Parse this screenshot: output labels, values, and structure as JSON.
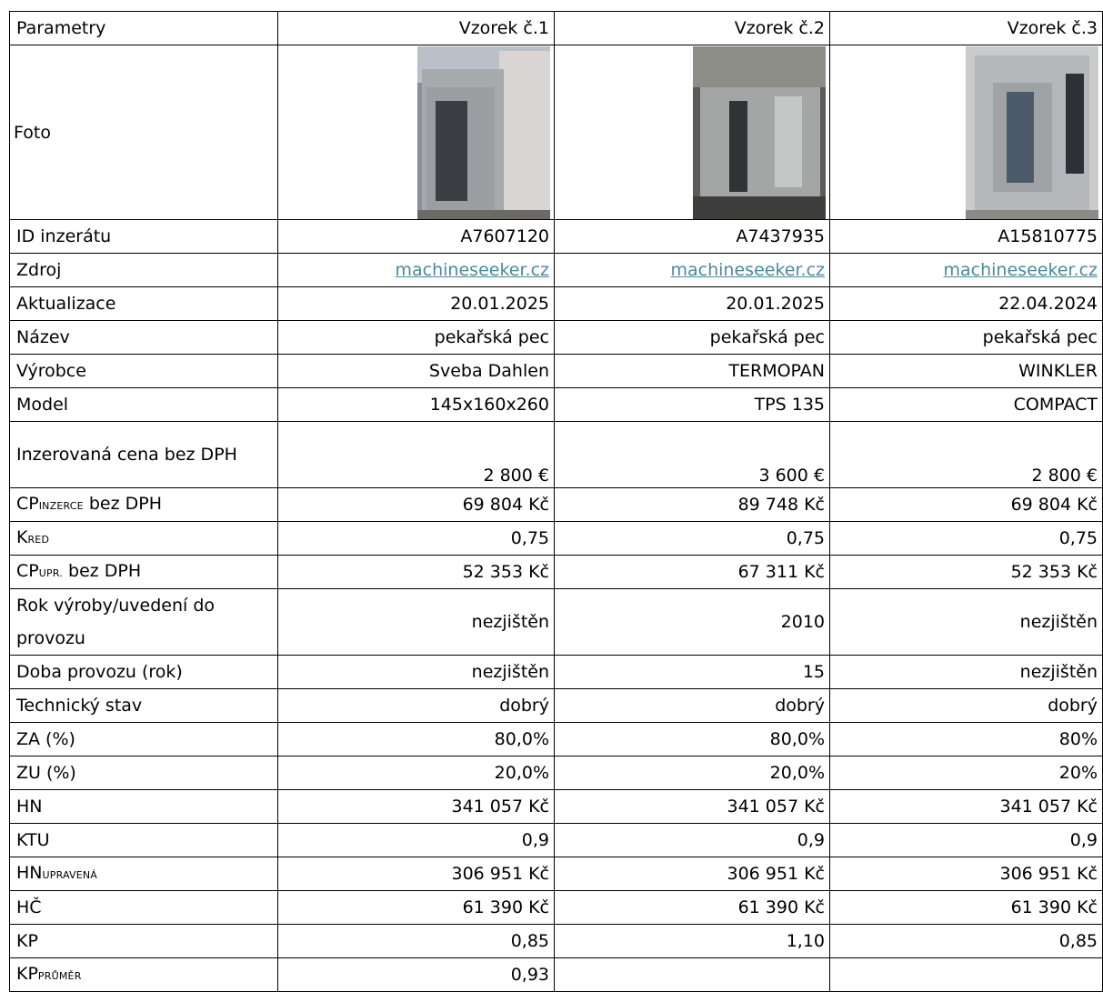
{
  "table": {
    "header": [
      "Parametry",
      "Vzorek č.1",
      "Vzorek č.2",
      "Vzorek č.3"
    ],
    "photo_label": "Foto",
    "rows": [
      {
        "label": "ID inzerátu",
        "values": [
          "A7607120",
          "A7437935",
          "A15810775"
        ]
      },
      {
        "label": "Zdroj",
        "values": [
          "machineseeker.cz",
          "machineseeker.cz",
          "machineseeker.cz"
        ],
        "link": true
      },
      {
        "label": "Aktualizace",
        "values": [
          "20.01.2025",
          "20.01.2025",
          "22.04.2024"
        ]
      },
      {
        "label": "Název",
        "values": [
          "pekařská pec",
          "pekařská pec",
          "pekařská pec"
        ]
      },
      {
        "label": "Výrobce",
        "values": [
          "Sveba Dahlen",
          "TERMOPAN",
          "WINKLER"
        ]
      },
      {
        "label": "Model",
        "values": [
          "145x160x260",
          "TPS 135",
          "COMPACT"
        ]
      },
      {
        "label": "Inzerovaná cena bez DPH",
        "values": [
          "2 800 €",
          "3 600 €",
          "2 800 €"
        ],
        "wrap": true,
        "bottom": true
      },
      {
        "label": "CP",
        "sub": "INZERCE",
        "suffix": " bez DPH",
        "values": [
          "69 804 Kč",
          "89 748 Kč",
          "69 804 Kč"
        ]
      },
      {
        "label": "K",
        "sub": "RED",
        "values": [
          "0,75",
          "0,75",
          "0,75"
        ]
      },
      {
        "label": "CP",
        "sub": "UPR.",
        "suffix": " bez DPH",
        "values": [
          "52 353 Kč",
          "67 311 Kč",
          "52 353 Kč"
        ]
      },
      {
        "label": "Rok výroby/uvedení do provozu",
        "values": [
          "nezjištěn",
          "2010",
          "nezjištěn"
        ],
        "wrap": true
      },
      {
        "label": "Doba provozu (rok)",
        "values": [
          "nezjištěn",
          "15",
          "nezjištěn"
        ]
      },
      {
        "label": "Technický stav",
        "values": [
          "dobrý",
          "dobrý",
          "dobrý"
        ]
      },
      {
        "label": "ZA (%)",
        "values": [
          "80,0%",
          "80,0%",
          "80%"
        ]
      },
      {
        "label": "ZU (%)",
        "values": [
          "20,0%",
          "20,0%",
          "20%"
        ]
      },
      {
        "label": "HN",
        "values": [
          "341 057 Kč",
          "341 057 Kč",
          "341 057 Kč"
        ]
      },
      {
        "label": "KTU",
        "values": [
          "0,9",
          "0,9",
          "0,9"
        ]
      },
      {
        "label": "HN",
        "sub": "UPRAVENÁ",
        "values": [
          "306 951 Kč",
          "306 951 Kč",
          "306 951 Kč"
        ]
      },
      {
        "label": "HČ",
        "values": [
          "61 390 Kč",
          "61 390 Kč",
          "61 390 Kč"
        ]
      },
      {
        "label": "KP",
        "values": [
          "0,85",
          "1,10",
          "0,85"
        ]
      },
      {
        "label": "KP",
        "sub": "PRŮMĚR",
        "values": [
          "0,93"
        ]
      }
    ]
  }
}
